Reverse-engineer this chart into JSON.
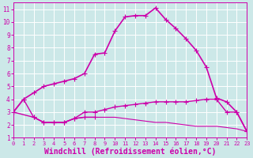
{
  "background_color": "#cce8e8",
  "line_color": "#cc00aa",
  "grid_color": "#ffffff",
  "xlabel": "Windchill (Refroidissement éolien,°C)",
  "xlabel_fontsize": 7,
  "xlim": [
    0,
    23
  ],
  "ylim": [
    1,
    11.5
  ],
  "xticks": [
    0,
    1,
    2,
    3,
    4,
    5,
    6,
    7,
    8,
    9,
    10,
    11,
    12,
    13,
    14,
    15,
    16,
    17,
    18,
    19,
    20,
    21,
    22,
    23
  ],
  "yticks": [
    1,
    2,
    3,
    4,
    5,
    6,
    7,
    8,
    9,
    10,
    11
  ],
  "series": [
    {
      "x": [
        0,
        1,
        2,
        3,
        4,
        5,
        6,
        7,
        8,
        9,
        10,
        11,
        12,
        13,
        14,
        15,
        16,
        17,
        18,
        19,
        20,
        21,
        22,
        23
      ],
      "y": [
        3.0,
        4.0,
        4.5,
        5.0,
        5.2,
        5.4,
        5.6,
        6.0,
        7.5,
        7.6,
        9.3,
        10.4,
        10.5,
        10.5,
        11.1,
        10.2,
        9.5,
        8.7,
        7.8,
        6.5,
        4.1,
        3.8,
        3.0,
        1.5
      ],
      "marker": "+",
      "markersize": 4,
      "linewidth": 1.2,
      "has_markers_at": [
        0,
        1,
        6,
        7,
        11,
        12,
        13,
        14,
        15,
        17,
        20,
        22,
        23
      ]
    },
    {
      "x": [
        0,
        2,
        3,
        4,
        5,
        6,
        7,
        8,
        9,
        10,
        11,
        12,
        13,
        14,
        15,
        16,
        17,
        18,
        19,
        20,
        21,
        22,
        23
      ],
      "y": [
        3.0,
        2.6,
        2.2,
        2.2,
        2.2,
        2.5,
        3.0,
        3.0,
        3.2,
        3.4,
        3.5,
        3.6,
        3.7,
        3.8,
        3.8,
        3.8,
        3.8,
        3.9,
        4.0,
        4.0,
        3.0,
        3.0,
        1.5
      ],
      "marker": "+",
      "markersize": 4,
      "linewidth": 1.0
    },
    {
      "x": [
        0,
        1,
        2,
        3,
        4,
        5,
        6,
        7,
        8
      ],
      "y": [
        3.0,
        4.0,
        2.6,
        2.2,
        2.2,
        2.2,
        2.5,
        2.6,
        2.6
      ],
      "marker": "+",
      "markersize": 4,
      "linewidth": 1.0
    },
    {
      "x": [
        2,
        3,
        4,
        5,
        6,
        7,
        8,
        9,
        10,
        11,
        12,
        13,
        14,
        15,
        16,
        17,
        18,
        19,
        20,
        21,
        22,
        23
      ],
      "y": [
        2.6,
        2.2,
        2.2,
        2.2,
        2.5,
        2.6,
        2.6,
        2.6,
        2.6,
        2.5,
        2.4,
        2.3,
        2.2,
        2.2,
        2.1,
        2.0,
        1.9,
        1.9,
        1.9,
        1.8,
        1.7,
        1.5
      ],
      "marker": null,
      "markersize": 3,
      "linewidth": 0.8
    }
  ]
}
